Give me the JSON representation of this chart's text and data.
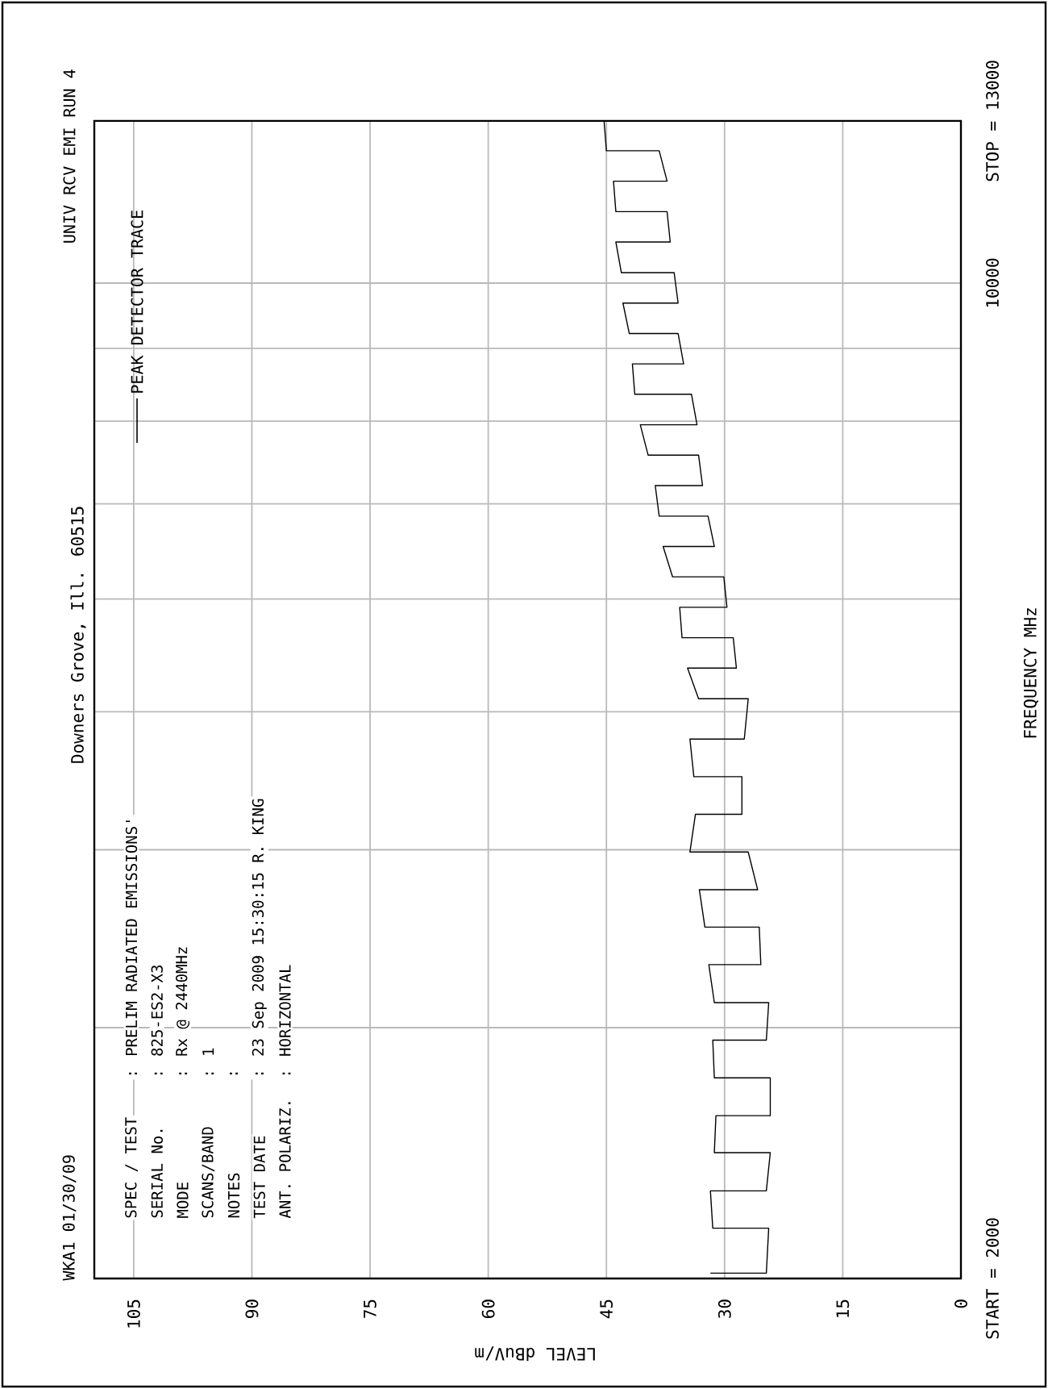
{
  "chart_data": {
    "type": "line",
    "subtitle": "Downers Grove, Ill. 60515",
    "xlabel": "LEVEL dBuV/m",
    "ylabel": "FREQUENCY  MHz",
    "annotations": [
      "WKA1  01/30/09",
      "UNIV RCV EMI  RUN 4",
      "SPEC / TEST",
      ": PRELIM RADIATED EMISSIONS'",
      "SERIAL No.",
      ": 825-ES2-X3",
      "MODE",
      ": Rx @ 2440MHz",
      "SCANS/BAND",
      ": 1",
      "NOTES",
      ":",
      "TEST DATE",
      ": 23 Sep 2009 15:30:15  R. KING",
      "ANT. POLARIZ.",
      ": HORIZONTAL"
    ],
    "log": "y",
    "xlim": [
      110,
      0
    ],
    "xticks": [
      0,
      15,
      30,
      45,
      60,
      75,
      90,
      105
    ],
    "ylim": [
      2000,
      13000
    ],
    "yticks": [
      {
        "value": 2000,
        "label": "START = 2000"
      },
      {
        "value": 3000,
        "label": null
      },
      {
        "value": 4000,
        "label": null
      },
      {
        "value": 5000,
        "label": null
      },
      {
        "value": 6000,
        "label": null
      },
      {
        "value": 7000,
        "label": null
      },
      {
        "value": 8000,
        "label": null
      },
      {
        "value": 9000,
        "label": null
      },
      10000,
      {
        "value": 13000,
        "label": "STOP = 13000"
      }
    ],
    "grid": true,
    "legend": "top left",
    "series": [
      {
        "name": "PEAK  DETECTOR TRACE",
        "color": "#000000",
        "x": [
          31.8,
          24.7,
          24.4,
          31.5,
          31.8,
          24.7,
          24.2,
          31.3,
          31.1,
          24.2,
          24.2,
          31.3,
          31.5,
          24.7,
          24.4,
          31.3,
          32.0,
          25.4,
          25.6,
          32.5,
          33.2,
          25.8,
          27.0,
          34.4,
          33.7,
          27.8,
          27.8,
          33.9,
          34.4,
          27.5,
          27.0,
          33.3,
          34.7,
          28.5,
          28.9,
          35.4,
          35.7,
          29.7,
          30.1,
          36.6,
          37.8,
          31.3,
          32.1,
          38.3,
          38.8,
          32.8,
          33.3,
          39.7,
          40.7,
          33.5,
          34.2,
          41.4,
          41.7,
          35.2,
          35.9,
          42.1,
          42.9,
          35.9,
          36.4,
          43.1,
          43.8,
          36.9,
          37.3,
          43.8,
          44.1,
          37.3,
          38.3,
          45.0,
          45.3,
          39.0
        ],
        "values": [
          2017,
          2017,
          2169,
          2169,
          2304,
          2304,
          2451,
          2451,
          2602,
          2602,
          2766,
          2766,
          2940,
          2940,
          3124,
          3124,
          3322,
          3322,
          3530,
          3530,
          3750,
          3750,
          3986,
          3986,
          4236,
          4236,
          4502,
          4502,
          4784,
          4784,
          5107,
          5107,
          5366,
          5366,
          5636,
          5636,
          5921,
          5921,
          6219,
          6219,
          6533,
          6533,
          6861,
          6861,
          7209,
          7209,
          7572,
          7572,
          7954,
          7954,
          8355,
          8355,
          8776,
          8776,
          9218,
          9218,
          9683,
          9683,
          10171,
          10171,
          10688,
          10688,
          11226,
          11226,
          11793,
          11793,
          12388,
          12388,
          13000,
          13000
        ]
      }
    ]
  }
}
